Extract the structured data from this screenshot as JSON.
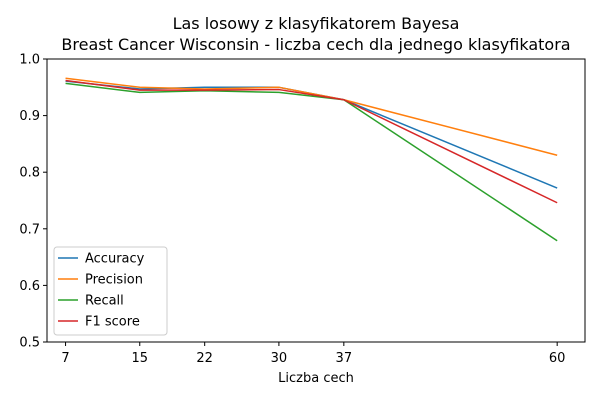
{
  "chart_data": {
    "type": "line",
    "title": "Las losowy z klasyfikatorem Bayesa",
    "subtitle": "Breast Cancer Wisconsin - liczba cech dla jednego klasyfikatora",
    "xlabel": "Liczba cech",
    "ylabel": "",
    "x": [
      7,
      15,
      22,
      30,
      37,
      60
    ],
    "xlim": [
      5,
      63
    ],
    "ylim": [
      0.5,
      1.0
    ],
    "yticks": [
      "0.5",
      "0.6",
      "0.7",
      "0.8",
      "0.9",
      "1.0"
    ],
    "xticks": [
      "7",
      "15",
      "22",
      "30",
      "37",
      "60"
    ],
    "grid": false,
    "legend_position": "lower-left",
    "series": [
      {
        "name": "Accuracy",
        "color": "#1f77b4",
        "values": [
          0.961,
          0.947,
          0.95,
          0.95,
          0.928,
          0.772
        ]
      },
      {
        "name": "Precision",
        "color": "#ff7f0e",
        "values": [
          0.966,
          0.95,
          0.947,
          0.95,
          0.928,
          0.83
        ]
      },
      {
        "name": "Recall",
        "color": "#2ca02c",
        "values": [
          0.957,
          0.941,
          0.944,
          0.941,
          0.928,
          0.679
        ]
      },
      {
        "name": "F1 score",
        "color": "#d62728",
        "values": [
          0.962,
          0.945,
          0.945,
          0.946,
          0.928,
          0.746
        ]
      }
    ]
  }
}
